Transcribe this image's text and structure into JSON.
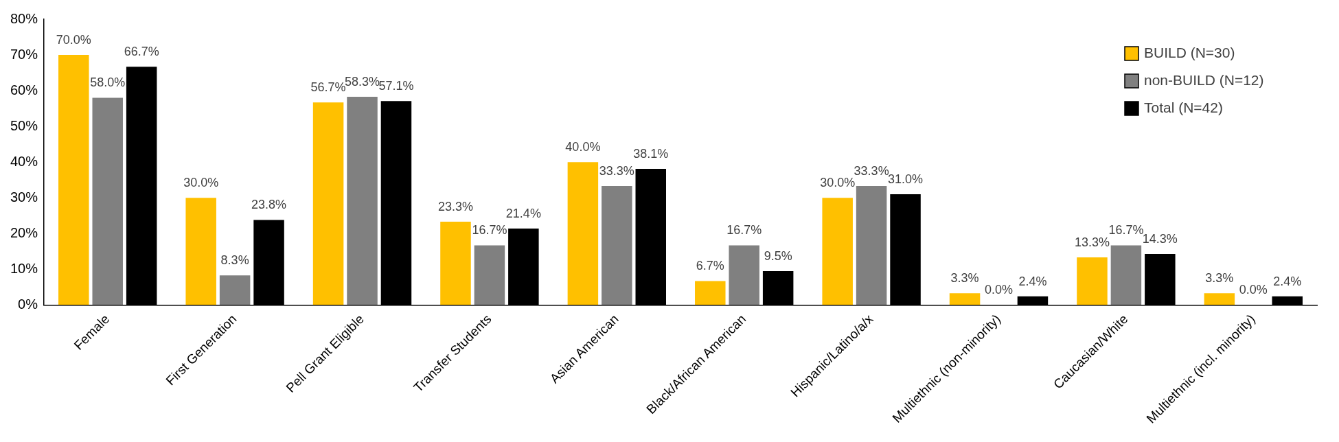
{
  "chart_data": {
    "type": "bar",
    "categories": [
      "Female",
      "First Generation",
      "Pell Grant Eligible",
      "Transfer Students",
      "Asian American",
      "Black/African American",
      "Hispanic/Latino/a/x",
      "Multiethnic (non-minority)",
      "Caucasian/White",
      "Multiethnic (incl. minority)"
    ],
    "series": [
      {
        "name": "BUILD (N=30)",
        "color": "#ffc000",
        "values": [
          70.0,
          30.0,
          56.7,
          23.3,
          40.0,
          6.7,
          30.0,
          3.3,
          13.3,
          3.3
        ],
        "value_labels": [
          "70.0%",
          "30.0%",
          "56.7%",
          "23.3%",
          "40.0%",
          "6.7%",
          "30.0%",
          "3.3%",
          "13.3%",
          "3.3%"
        ]
      },
      {
        "name": "non-BUILD (N=12)",
        "color": "#808080",
        "values": [
          58.0,
          8.3,
          58.3,
          16.7,
          33.3,
          16.7,
          33.3,
          0.0,
          16.7,
          0.0
        ],
        "value_labels": [
          "58.0%",
          "8.3%",
          "58.3%",
          "16.7%",
          "33.3%",
          "16.7%",
          "33.3%",
          "0.0%",
          "16.7%",
          "0.0%"
        ]
      },
      {
        "name": "Total (N=42)",
        "color": "#000000",
        "values": [
          66.7,
          23.8,
          57.1,
          21.4,
          38.1,
          9.5,
          31.0,
          2.4,
          14.3,
          2.4
        ],
        "value_labels": [
          "66.7%",
          "23.8%",
          "57.1%",
          "21.4%",
          "38.1%",
          "9.5%",
          "31.0%",
          "2.4%",
          "14.3%",
          "2.4%"
        ]
      }
    ],
    "ylim": [
      0,
      80
    ],
    "yticks": [
      {
        "value": 0,
        "label": "0%"
      },
      {
        "value": 10,
        "label": "10%"
      },
      {
        "value": 20,
        "label": "20%"
      },
      {
        "value": 30,
        "label": "30%"
      },
      {
        "value": 40,
        "label": "40%"
      },
      {
        "value": 50,
        "label": "50%"
      },
      {
        "value": 60,
        "label": "60%"
      },
      {
        "value": 70,
        "label": "70%"
      },
      {
        "value": 80,
        "label": "80%"
      }
    ],
    "grid": false,
    "legend": "top right"
  }
}
